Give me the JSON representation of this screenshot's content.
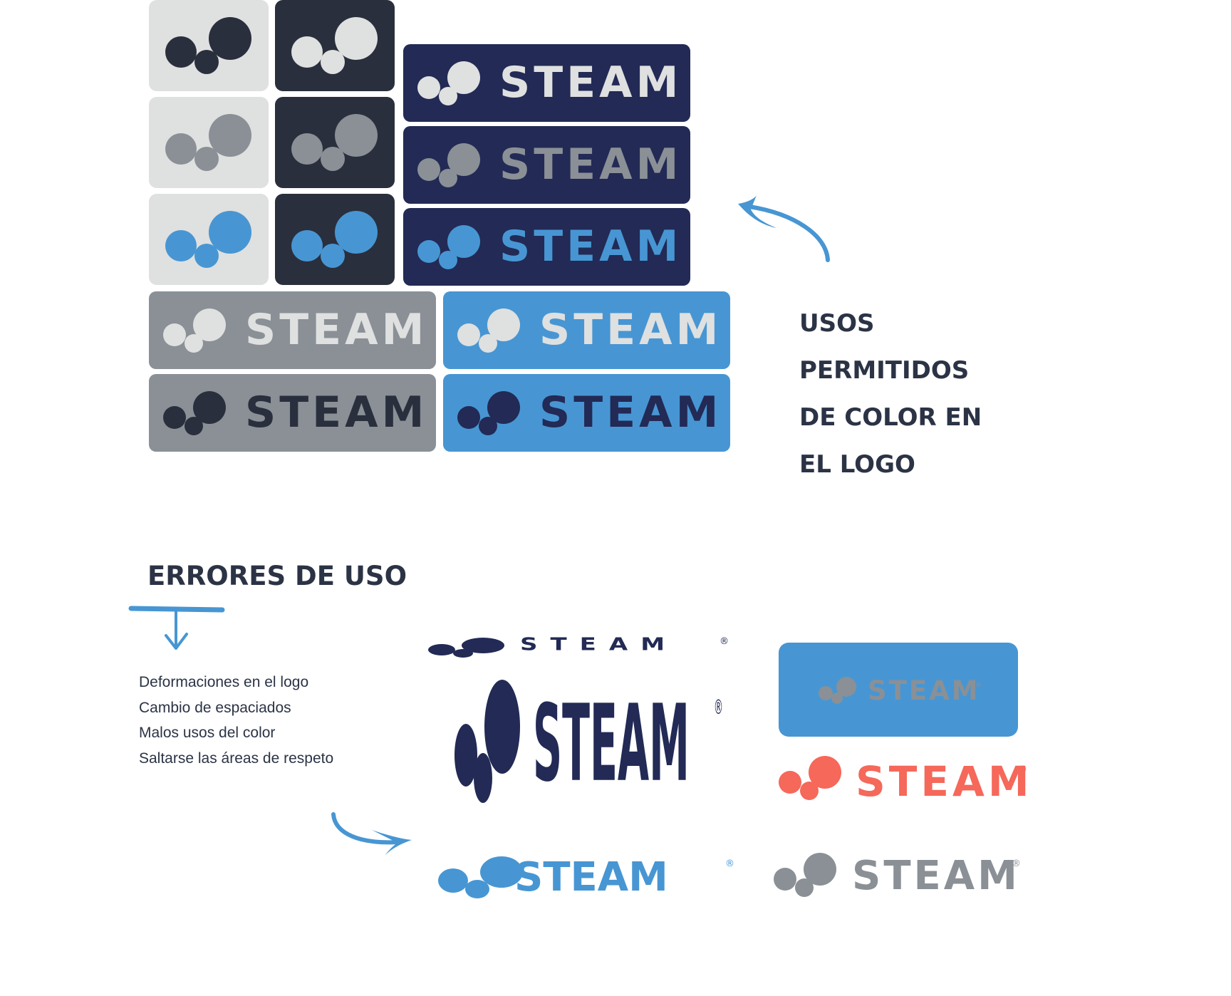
{
  "brand": {
    "wordmark": "STEAM",
    "registered": "®"
  },
  "colors": {
    "light_gray": "#dfe0e0",
    "charcoal": "#2a2f3d",
    "navy": "#222a55",
    "mid_gray": "#8a9096",
    "blue": "#4796d3",
    "coral": "#f5685a",
    "heading_text": "#2b3345"
  },
  "permitted": {
    "heading_lines": [
      "USOS",
      "PERMITIDOS",
      "DE COLOR EN",
      "EL LOGO"
    ],
    "icon_tiles": [
      {
        "bg": "light_gray",
        "mark": "charcoal"
      },
      {
        "bg": "charcoal",
        "mark": "light_gray"
      },
      {
        "bg": "light_gray",
        "mark": "mid_gray"
      },
      {
        "bg": "charcoal",
        "mark": "mid_gray"
      },
      {
        "bg": "light_gray",
        "mark": "blue"
      },
      {
        "bg": "charcoal",
        "mark": "blue"
      }
    ],
    "logo_bars": [
      {
        "bg": "navy",
        "fg": "light_gray"
      },
      {
        "bg": "navy",
        "fg": "mid_gray"
      },
      {
        "bg": "navy",
        "fg": "blue"
      },
      {
        "bg": "mid_gray",
        "fg": "light_gray"
      },
      {
        "bg": "blue",
        "fg": "light_gray"
      },
      {
        "bg": "mid_gray",
        "fg": "charcoal"
      },
      {
        "bg": "blue",
        "fg": "navy"
      }
    ]
  },
  "errors": {
    "heading": "ERRORES DE USO",
    "items": [
      "Deformaciones en el logo",
      "Cambio de espaciados",
      "Malos usos del color",
      "Saltarse las áreas de respeto"
    ],
    "examples": [
      {
        "case": "stretched-wide",
        "color": "navy"
      },
      {
        "case": "stretched-tall",
        "color": "navy"
      },
      {
        "case": "spacing-collapsed",
        "color": "blue"
      },
      {
        "case": "low-contrast-on-blue",
        "bg": "blue",
        "fg": "mid_gray"
      },
      {
        "case": "off-brand-color",
        "color": "coral"
      },
      {
        "case": "no-clear-space",
        "color": "mid_gray"
      }
    ]
  }
}
